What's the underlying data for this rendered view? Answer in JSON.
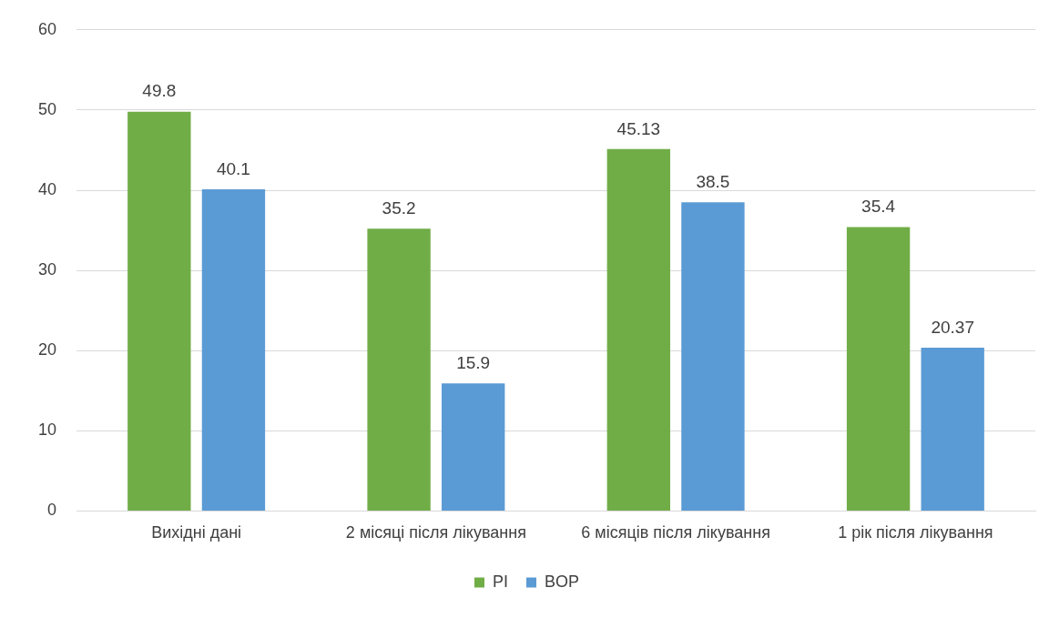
{
  "chart_data": {
    "type": "bar",
    "categories": [
      "Вихідні дані",
      "2 місяці після лікування",
      "6 місяців після лікування",
      "1 рік після лікування"
    ],
    "series": [
      {
        "name": "PI",
        "color": "#70ad47",
        "values": [
          49.8,
          35.2,
          45.13,
          35.4
        ]
      },
      {
        "name": "BOP",
        "color": "#5b9bd5",
        "values": [
          40.1,
          15.9,
          38.5,
          20.37
        ]
      }
    ],
    "ylim": [
      0,
      60
    ],
    "yticks": [
      0,
      10,
      20,
      30,
      40,
      50,
      60
    ],
    "grid": "y",
    "legend": "bottom",
    "data_labels": true
  }
}
